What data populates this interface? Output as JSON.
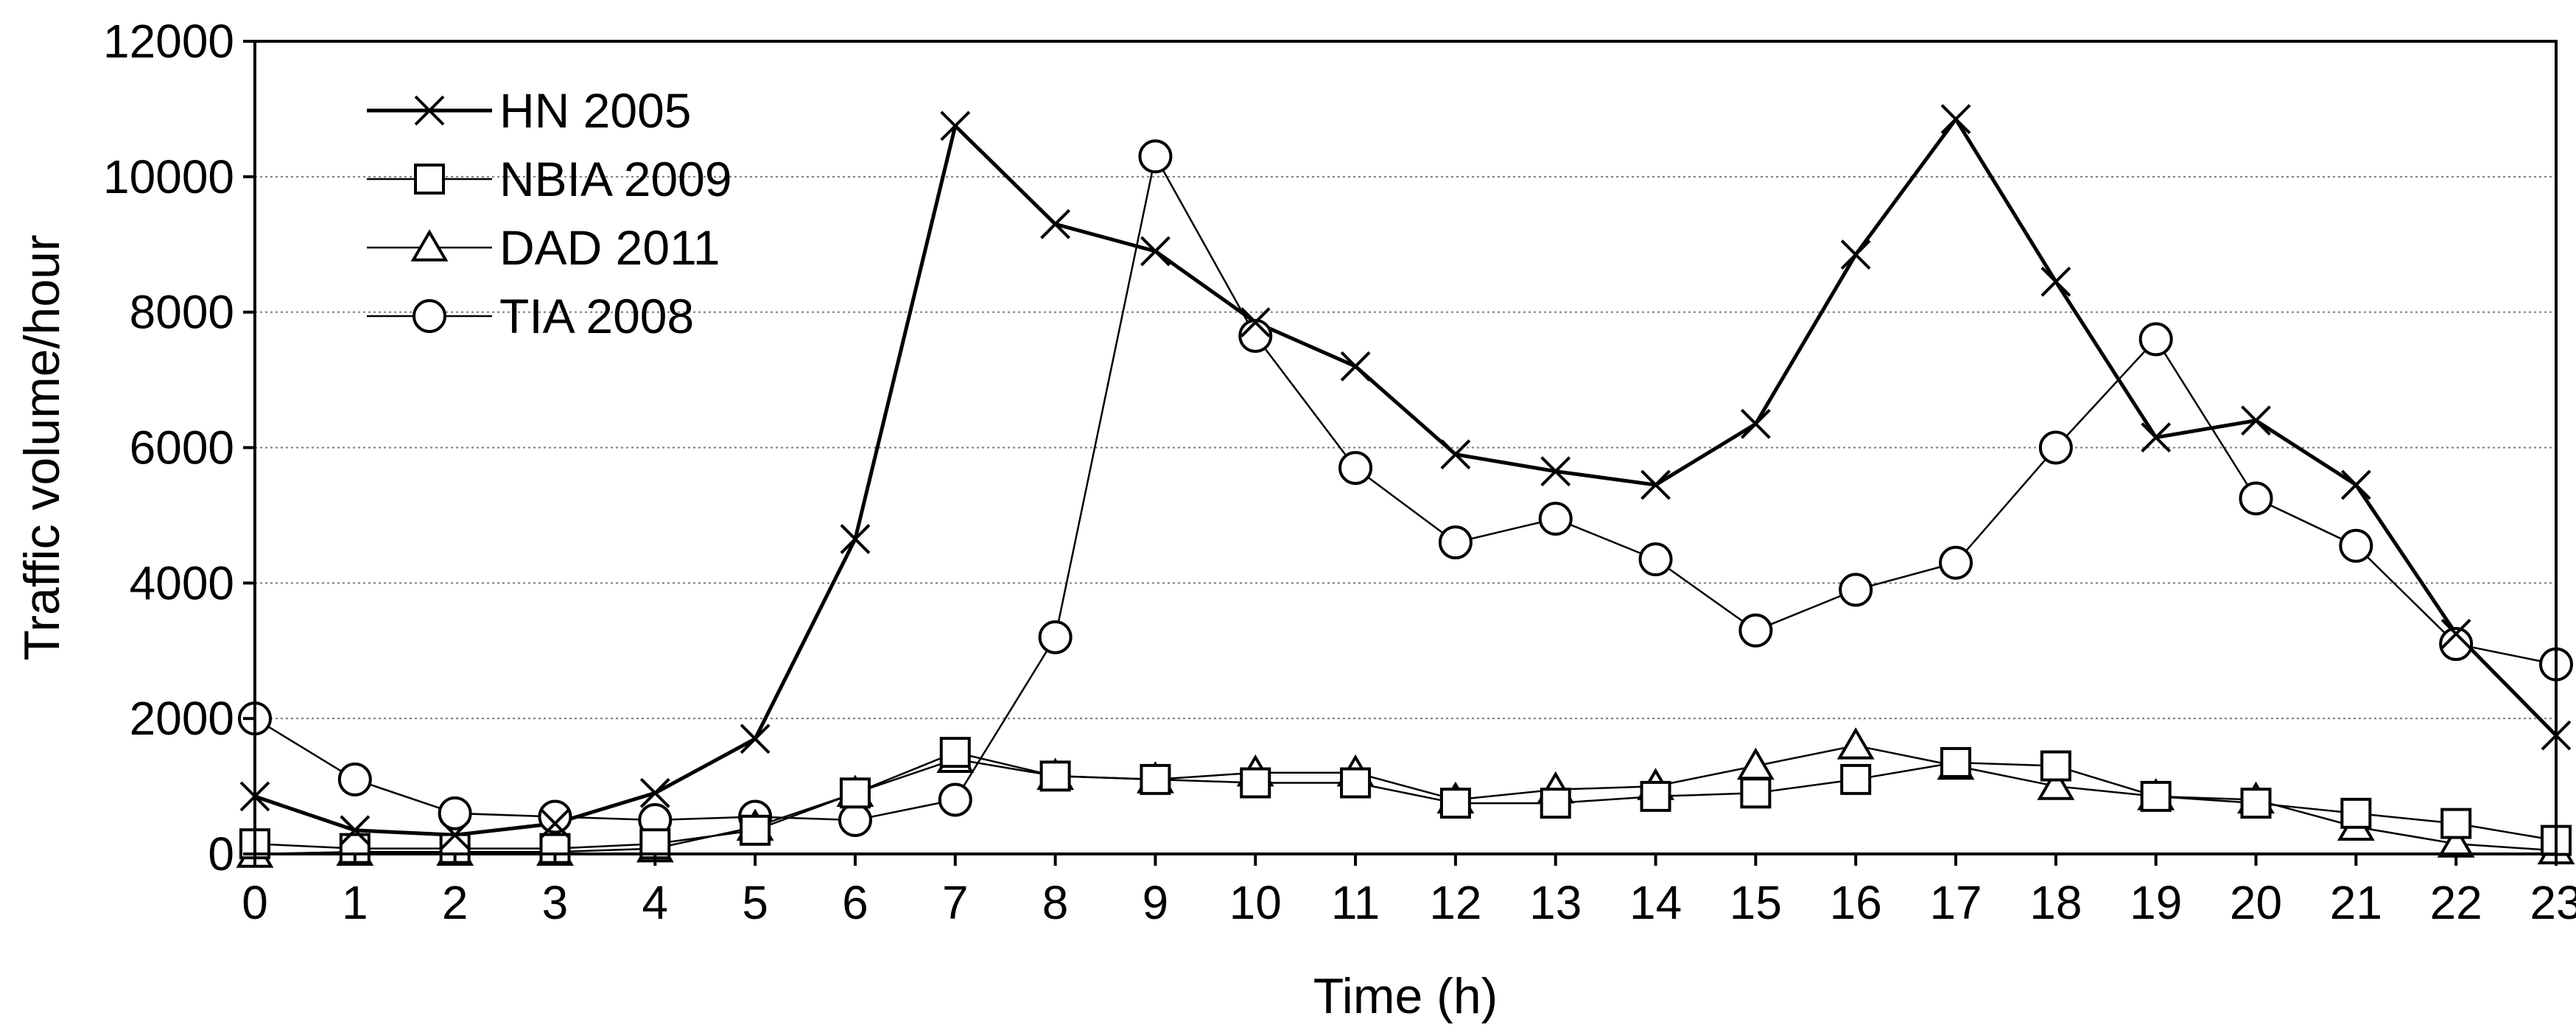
{
  "chart_data": {
    "type": "line",
    "title": "",
    "xlabel": "Time (h)",
    "ylabel": "Traffic volume/hour",
    "x": [
      0,
      1,
      2,
      3,
      4,
      5,
      6,
      7,
      8,
      9,
      10,
      11,
      12,
      13,
      14,
      15,
      16,
      17,
      18,
      19,
      20,
      21,
      22,
      23
    ],
    "xlim": [
      0,
      23
    ],
    "ylim": [
      0,
      12000
    ],
    "yticks": [
      0,
      2000,
      4000,
      6000,
      8000,
      10000,
      12000
    ],
    "grid": "horizontal dotted",
    "legend_position": "top-left",
    "series": [
      {
        "name": "HN 2005",
        "marker": "x",
        "values": [
          850,
          350,
          280,
          450,
          900,
          1700,
          4650,
          10750,
          9300,
          8900,
          7850,
          7200,
          5900,
          5650,
          5450,
          6350,
          8850,
          10850,
          8450,
          6150,
          6400,
          5450,
          3250,
          1750
        ]
      },
      {
        "name": "NBIA 2009",
        "marker": "square",
        "values": [
          150,
          80,
          80,
          80,
          150,
          350,
          900,
          1500,
          1150,
          1100,
          1050,
          1050,
          750,
          750,
          850,
          900,
          1100,
          1350,
          1300,
          850,
          750,
          600,
          450,
          200
        ]
      },
      {
        "name": "DAD 2011",
        "marker": "triangle",
        "values": [
          0,
          30,
          30,
          30,
          80,
          400,
          900,
          1400,
          1150,
          1100,
          1200,
          1200,
          800,
          950,
          1000,
          1300,
          1600,
          1300,
          1000,
          850,
          800,
          400,
          150,
          50
        ]
      },
      {
        "name": "TIA 2008",
        "marker": "circle",
        "values": [
          2000,
          1100,
          600,
          550,
          500,
          550,
          500,
          800,
          3200,
          10300,
          7650,
          5700,
          4600,
          4950,
          4350,
          3300,
          3900,
          4300,
          6000,
          7600,
          5250,
          4550,
          3100,
          2800
        ]
      }
    ]
  }
}
